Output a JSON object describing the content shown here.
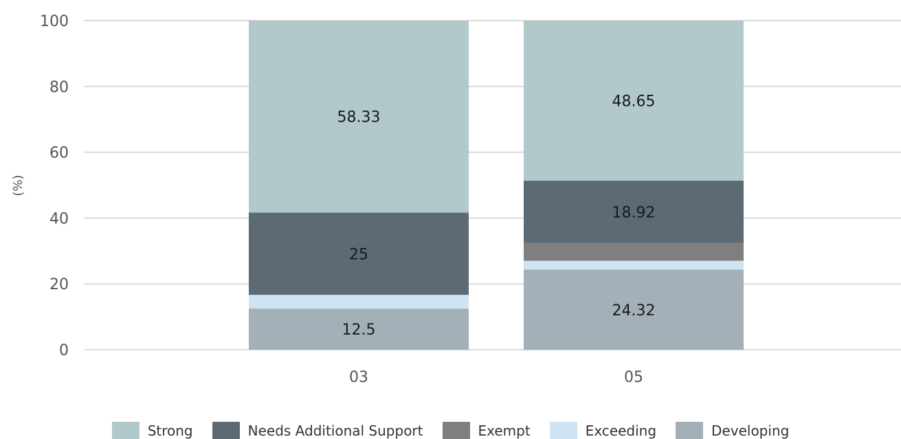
{
  "chart_data": {
    "type": "bar",
    "stacked": true,
    "ylabel": "(%)",
    "ylim": [
      0,
      100
    ],
    "yticks": [
      0,
      20,
      40,
      60,
      80,
      100
    ],
    "categories": [
      "03",
      "05"
    ],
    "series": [
      {
        "name": "Developing",
        "color": "#a4b0b8",
        "values": [
          12.5,
          24.32
        ],
        "labels": [
          "12.5",
          "24.32"
        ]
      },
      {
        "name": "Exceeding",
        "color": "#cfe4f3",
        "values": [
          4.17,
          2.7
        ],
        "labels": [
          "",
          ""
        ]
      },
      {
        "name": "Exempt",
        "color": "#7f7f7f",
        "values": [
          0,
          5.41
        ],
        "labels": [
          "",
          ""
        ]
      },
      {
        "name": "Needs Additional Support",
        "color": "#5c6a75",
        "values": [
          25,
          18.92
        ],
        "labels": [
          "25",
          "18.92"
        ]
      },
      {
        "name": "Strong",
        "color": "#b1c9ca",
        "values": [
          58.33,
          48.65
        ],
        "labels": [
          "58.33",
          "48.65"
        ]
      }
    ],
    "legend_order": [
      "Strong",
      "Needs Additional Support",
      "Exempt",
      "Exceeding",
      "Developing"
    ],
    "legend_position": "bottom",
    "grid": true
  }
}
